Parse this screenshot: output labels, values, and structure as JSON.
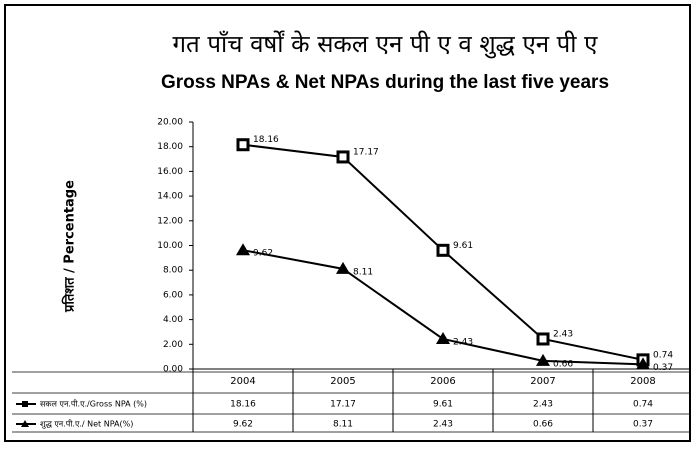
{
  "chart_data": {
    "type": "line",
    "title": "गत पाँच वर्षों के सकल एन पी ए व शुद्ध एन पी ए",
    "subtitle": "Gross NPAs & Net NPAs during the last five years",
    "y_label": "प्रतिशत / Percentage",
    "categories": [
      "2004",
      "2005",
      "2006",
      "2007",
      "2008"
    ],
    "series": [
      {
        "name": "सकल एन.पी.ए./Gross NPA (%)",
        "color": "#000000",
        "marker": "square",
        "values": [
          18.16,
          17.17,
          9.61,
          2.43,
          0.74
        ]
      },
      {
        "name": "शुद्ध एन.पी.ए./ Net NPA(%)",
        "color": "#000000",
        "marker": "triangle",
        "values": [
          9.62,
          8.11,
          2.43,
          0.66,
          0.37
        ]
      }
    ],
    "ylim": [
      0,
      20
    ],
    "yticks": [
      {
        "value": 0,
        "label": "0.00"
      },
      {
        "value": 2,
        "label": "2.00"
      },
      {
        "value": 4,
        "label": "4.00"
      },
      {
        "value": 6,
        "label": "6.00"
      },
      {
        "value": 8,
        "label": "8.00"
      },
      {
        "value": 10,
        "label": "10.00"
      },
      {
        "value": 12,
        "label": "12.00"
      },
      {
        "value": 14,
        "label": "14.00"
      },
      {
        "value": 16,
        "label": "16.00"
      },
      {
        "value": 18,
        "label": "18.00"
      },
      {
        "value": 20,
        "label": "20.00"
      }
    ],
    "grid": false
  }
}
